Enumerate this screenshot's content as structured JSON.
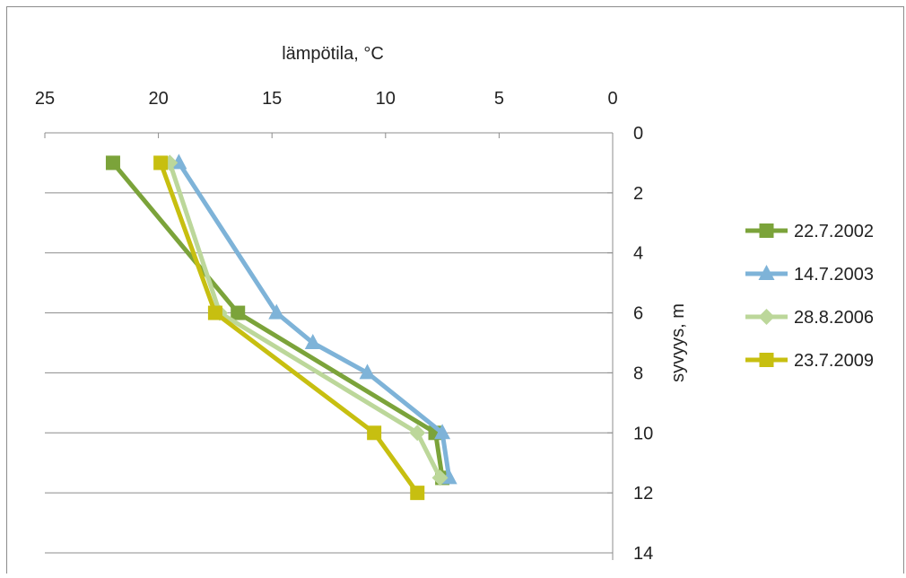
{
  "chart_data": {
    "type": "line",
    "orientation": "depth-profile",
    "xlabel": "lämpötila, °C",
    "ylabel": "syvyys, m",
    "x_axis_position": "top",
    "x_reversed": true,
    "y_reversed": true,
    "xlim": [
      0,
      25
    ],
    "ylim": [
      0,
      14
    ],
    "x_ticks": [
      "25",
      "20",
      "15",
      "10",
      "5",
      "0"
    ],
    "y_ticks": [
      "0",
      "2",
      "4",
      "6",
      "8",
      "10",
      "12",
      "14"
    ],
    "grid": "horizontal",
    "legend_position": "right",
    "series": [
      {
        "name": "22.7.2002",
        "color": "#7ba33a",
        "marker": "square",
        "points": [
          [
            22.0,
            1
          ],
          [
            16.5,
            6
          ],
          [
            7.8,
            10
          ],
          [
            7.5,
            11.5
          ]
        ]
      },
      {
        "name": "14.7.2003",
        "color": "#7eb3d8",
        "marker": "triangle",
        "points": [
          [
            19.1,
            1
          ],
          [
            14.8,
            6
          ],
          [
            13.2,
            7
          ],
          [
            10.8,
            8
          ],
          [
            7.5,
            10
          ],
          [
            7.2,
            11.5
          ]
        ]
      },
      {
        "name": "28.8.2006",
        "color": "#bcd79a",
        "marker": "diamond",
        "points": [
          [
            19.5,
            1
          ],
          [
            17.3,
            6
          ],
          [
            8.6,
            10
          ],
          [
            7.6,
            11.5
          ]
        ]
      },
      {
        "name": "23.7.2009",
        "color": "#c7bf10",
        "marker": "square",
        "points": [
          [
            19.9,
            1
          ],
          [
            17.5,
            6
          ],
          [
            10.5,
            10
          ],
          [
            8.6,
            12
          ]
        ]
      }
    ]
  }
}
